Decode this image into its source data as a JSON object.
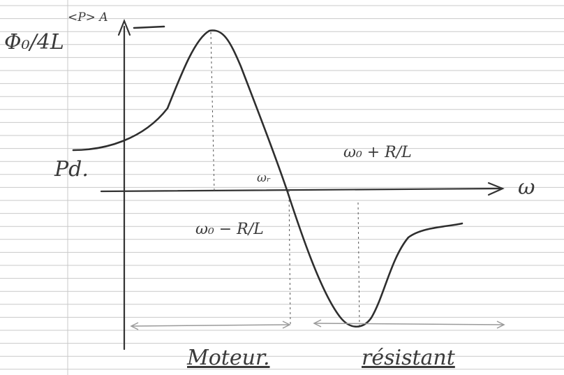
{
  "labels": {
    "y_axis_top": "<P> A",
    "y_axis_side": "Φ₀/4L",
    "y_intercept": "Pd.",
    "x_axis": "ω",
    "center_freq": "ωᵣ",
    "w_minus": "ω₀ − R/L",
    "w_plus": "ω₀ + R/L",
    "region_left": "Moteur.",
    "region_right": "résistant"
  }
}
